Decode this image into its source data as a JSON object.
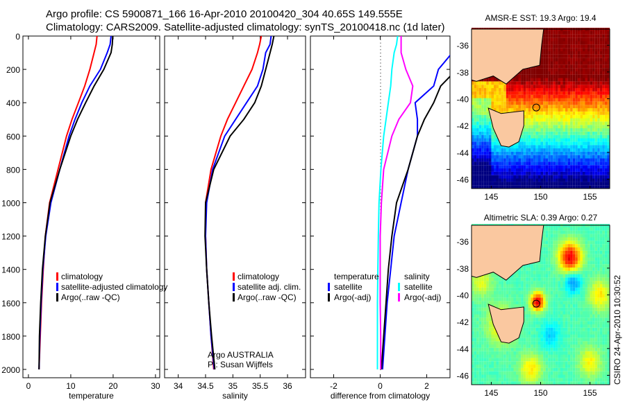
{
  "title_line1": "Argo profile: CS 5900871_166 16-Apr-2010 20100420_304 40.65S 149.555E",
  "title_line2": "Climatology: CARS2009. Satellite-adjusted climatology: synTS_20100418.nc (1d later)",
  "side_stamp": "CSIRO 24-Apr-2010 10:30:52",
  "colors": {
    "climatology": "#ff0000",
    "satellite": "#0000ff",
    "argo": "#000000",
    "sal_satellite": "#00ffff",
    "sal_argo": "#ff00ff"
  },
  "chart_data": [
    {
      "type": "line",
      "id": "temperature",
      "xlabel": "temperature",
      "ylabel": "",
      "xlim": [
        -1.3,
        31
      ],
      "ylim": [
        2050,
        0
      ],
      "xticks": [
        "0",
        "10",
        "20",
        "30"
      ],
      "yticks": [
        "0",
        "200",
        "400",
        "600",
        "800",
        "1000",
        "1200",
        "1400",
        "1600",
        "1800",
        "2000"
      ],
      "depth": [
        0,
        50,
        100,
        200,
        300,
        400,
        500,
        600,
        800,
        1000,
        1200,
        1400,
        1600,
        1800,
        2000
      ],
      "series": [
        {
          "name": "climatology",
          "color": "#ff0000",
          "values": [
            16.2,
            16.0,
            15.5,
            14.5,
            13.3,
            11.8,
            10.3,
            9.0,
            7.0,
            5.0,
            4.0,
            3.5,
            3.1,
            2.8,
            2.5
          ]
        },
        {
          "name": "satellite-adjusted climatology",
          "color": "#0000ff",
          "values": [
            19.5,
            19.3,
            18.6,
            17.0,
            14.5,
            12.6,
            11.0,
            9.6,
            7.4,
            5.3,
            4.1,
            3.4,
            3.0,
            2.7,
            2.5
          ]
        },
        {
          "name": "Argo(..raw -QC)",
          "color": "#000000",
          "values": [
            19.9,
            19.8,
            19.5,
            17.8,
            15.5,
            13.5,
            11.6,
            10.0,
            7.4,
            5.1,
            4.0,
            3.3,
            2.9,
            2.6,
            2.5
          ]
        }
      ],
      "legend": [
        "climatology",
        "satellite-adjusted climatology",
        "Argo(..raw -QC)"
      ]
    },
    {
      "type": "line",
      "id": "salinity",
      "xlabel": "salinity",
      "xlim": [
        33.75,
        36.33
      ],
      "ylim": [
        2050,
        0
      ],
      "xticks": [
        "34",
        "34.5",
        "35",
        "35.5",
        "36"
      ],
      "depth": [
        0,
        50,
        100,
        200,
        300,
        400,
        500,
        600,
        800,
        1000,
        1200,
        1400,
        1600,
        1800,
        2000
      ],
      "series": [
        {
          "name": "climatology",
          "color": "#ff0000",
          "values": [
            35.52,
            35.49,
            35.45,
            35.35,
            35.2,
            35.05,
            34.9,
            34.78,
            34.6,
            34.5,
            34.5,
            34.52,
            34.56,
            34.6,
            34.65
          ]
        },
        {
          "name": "satellite adj. clim.",
          "color": "#0000ff",
          "values": [
            35.7,
            35.68,
            35.6,
            35.55,
            35.45,
            35.25,
            35.05,
            34.85,
            34.63,
            34.52,
            34.5,
            34.52,
            34.56,
            34.6,
            34.66
          ]
        },
        {
          "name": "Argo(..raw -QC)",
          "color": "#000000",
          "values": [
            35.75,
            35.72,
            35.68,
            35.6,
            35.52,
            35.4,
            35.2,
            34.95,
            34.65,
            34.5,
            34.49,
            34.52,
            34.56,
            34.61,
            34.67
          ]
        }
      ],
      "legend": [
        "climatology",
        "satellite adj. clim.",
        "Argo(..raw -QC)"
      ],
      "annotation": [
        "Argo AUSTRALIA",
        "PI: Susan Wijffels"
      ]
    },
    {
      "type": "line",
      "id": "difference",
      "xlabel": "difference from climatology",
      "xlim": [
        -3,
        3
      ],
      "ylim": [
        2050,
        0
      ],
      "xticks": [
        "-2",
        "0",
        "2"
      ],
      "depth": [
        0,
        50,
        100,
        200,
        300,
        400,
        500,
        600,
        800,
        1000,
        1200,
        1400,
        1600,
        1800,
        2000
      ],
      "series": [
        {
          "name": "temperature satellite",
          "color": "#0000ff",
          "values": [
            3.3,
            3.3,
            3.1,
            2.5,
            2.3,
            1.5,
            1.6,
            1.6,
            1.2,
            0.9,
            0.6,
            0.45,
            0.3,
            0.2,
            0.1
          ]
        },
        {
          "name": "temperature Argo(-adj)",
          "color": "#000000",
          "values": [
            3.7,
            3.8,
            4.0,
            3.3,
            2.6,
            2.3,
            1.9,
            1.6,
            1.2,
            0.7,
            0.5,
            0.35,
            0.25,
            0.15,
            0.05
          ]
        },
        {
          "name": "salinity satellite",
          "color": "#00ffff",
          "values": [
            0.75,
            0.7,
            0.6,
            0.5,
            0.45,
            0.35,
            0.25,
            0.15,
            0.03,
            -0.05,
            -0.08,
            -0.1,
            -0.12,
            -0.12,
            -0.12
          ]
        },
        {
          "name": "salinity Argo(-adj)",
          "color": "#ff00ff",
          "values": [
            0.9,
            0.9,
            0.9,
            1.1,
            1.4,
            1.3,
            0.8,
            0.5,
            0.15,
            0.05,
            0.0,
            0.0,
            0.0,
            0.02,
            0.02
          ]
        }
      ],
      "legend_headers": [
        "temperature",
        "salinity"
      ],
      "legend": [
        "satellite",
        "Argo(-adj)",
        "satellite",
        "Argo(-adj)"
      ]
    }
  ],
  "maps": [
    {
      "title": "AMSR-E SST: 19.3 Argo: 19.4",
      "field": "sst",
      "lon_range": [
        143,
        157
      ],
      "lat_range": [
        -46.7,
        -34.8
      ],
      "xticks": [
        "145",
        "150",
        "155"
      ],
      "yticks": [
        "-36",
        "-38",
        "-40",
        "-42",
        "-44",
        "-46"
      ],
      "argo_position": [
        149.555,
        -40.65
      ]
    },
    {
      "title": "Altimetric SLA: 0.39 Argo: 0.27",
      "field": "sla",
      "lon_range": [
        143,
        157
      ],
      "lat_range": [
        -46.7,
        -34.8
      ],
      "xticks": [
        "145",
        "150",
        "155"
      ],
      "yticks": [
        "-36",
        "-38",
        "-40",
        "-42",
        "-44",
        "-46"
      ],
      "argo_position": [
        149.555,
        -40.65
      ]
    }
  ]
}
